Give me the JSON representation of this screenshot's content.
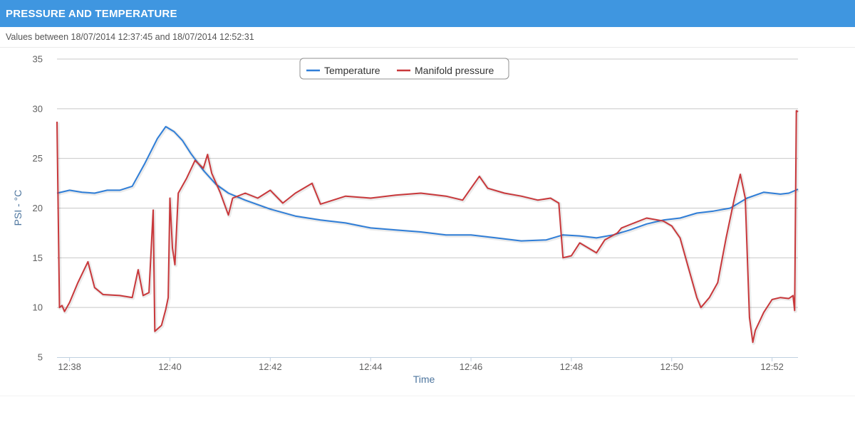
{
  "header": {
    "title": "PRESSURE AND TEMPERATURE"
  },
  "subtitle": "Values between 18/07/2014 12:37:45 and 18/07/2014 12:52:31",
  "chart_data": {
    "type": "line",
    "xlabel": "Time",
    "ylabel": "PSI - °C",
    "ylim": [
      5,
      35
    ],
    "yticks": [
      5,
      10,
      15,
      20,
      25,
      30,
      35
    ],
    "xlim": [
      "12:37:45",
      "12:52:31"
    ],
    "xticks": [
      "12:38",
      "12:40",
      "12:42",
      "12:44",
      "12:46",
      "12:48",
      "12:50",
      "12:52"
    ],
    "grid": true,
    "legend": "top-center",
    "series": [
      {
        "name": "Temperature",
        "color": "#2f7ed8",
        "points": [
          [
            "12:37:45",
            21.5
          ],
          [
            "12:38:00",
            21.8
          ],
          [
            "12:38:15",
            21.6
          ],
          [
            "12:38:30",
            21.5
          ],
          [
            "12:38:45",
            21.8
          ],
          [
            "12:39:00",
            21.8
          ],
          [
            "12:39:15",
            22.2
          ],
          [
            "12:39:30",
            24.5
          ],
          [
            "12:39:45",
            27.0
          ],
          [
            "12:39:55",
            28.2
          ],
          [
            "12:40:05",
            27.7
          ],
          [
            "12:40:15",
            26.8
          ],
          [
            "12:40:25",
            25.5
          ],
          [
            "12:40:40",
            23.8
          ],
          [
            "12:40:55",
            22.4
          ],
          [
            "12:41:10",
            21.5
          ],
          [
            "12:41:30",
            20.8
          ],
          [
            "12:42:00",
            19.9
          ],
          [
            "12:42:30",
            19.2
          ],
          [
            "12:43:00",
            18.8
          ],
          [
            "12:43:30",
            18.5
          ],
          [
            "12:44:00",
            18.0
          ],
          [
            "12:44:30",
            17.8
          ],
          [
            "12:45:00",
            17.6
          ],
          [
            "12:45:30",
            17.3
          ],
          [
            "12:46:00",
            17.3
          ],
          [
            "12:46:30",
            17.0
          ],
          [
            "12:47:00",
            16.7
          ],
          [
            "12:47:30",
            16.8
          ],
          [
            "12:47:50",
            17.3
          ],
          [
            "12:48:10",
            17.2
          ],
          [
            "12:48:30",
            17.0
          ],
          [
            "12:48:50",
            17.3
          ],
          [
            "12:49:10",
            17.8
          ],
          [
            "12:49:30",
            18.4
          ],
          [
            "12:49:50",
            18.8
          ],
          [
            "12:50:10",
            19.0
          ],
          [
            "12:50:30",
            19.5
          ],
          [
            "12:50:50",
            19.7
          ],
          [
            "12:51:10",
            20.0
          ],
          [
            "12:51:30",
            21.0
          ],
          [
            "12:51:50",
            21.6
          ],
          [
            "12:52:10",
            21.4
          ],
          [
            "12:52:20",
            21.5
          ],
          [
            "12:52:31",
            21.9
          ]
        ]
      },
      {
        "name": "Manifold pressure",
        "color": "#c9383b",
        "points": [
          [
            "12:37:45",
            28.7
          ],
          [
            "12:37:48",
            10.0
          ],
          [
            "12:37:51",
            10.2
          ],
          [
            "12:37:54",
            9.6
          ],
          [
            "12:38:00",
            10.5
          ],
          [
            "12:38:10",
            12.5
          ],
          [
            "12:38:22",
            14.6
          ],
          [
            "12:38:30",
            12.0
          ],
          [
            "12:38:40",
            11.3
          ],
          [
            "12:39:00",
            11.2
          ],
          [
            "12:39:15",
            11.0
          ],
          [
            "12:39:22",
            13.8
          ],
          [
            "12:39:28",
            11.2
          ],
          [
            "12:39:35",
            11.5
          ],
          [
            "12:39:40",
            19.8
          ],
          [
            "12:39:42",
            7.6
          ],
          [
            "12:39:50",
            8.2
          ],
          [
            "12:39:55",
            9.8
          ],
          [
            "12:39:58",
            11.0
          ],
          [
            "12:40:00",
            21.0
          ],
          [
            "12:40:03",
            16.0
          ],
          [
            "12:40:06",
            14.3
          ],
          [
            "12:40:10",
            21.5
          ],
          [
            "12:40:20",
            23.0
          ],
          [
            "12:40:30",
            24.8
          ],
          [
            "12:40:40",
            24.0
          ],
          [
            "12:40:45",
            25.4
          ],
          [
            "12:40:50",
            23.5
          ],
          [
            "12:41:00",
            21.6
          ],
          [
            "12:41:10",
            19.3
          ],
          [
            "12:41:15",
            21.0
          ],
          [
            "12:41:30",
            21.5
          ],
          [
            "12:41:45",
            21.0
          ],
          [
            "12:42:00",
            21.8
          ],
          [
            "12:42:15",
            20.5
          ],
          [
            "12:42:30",
            21.5
          ],
          [
            "12:42:50",
            22.5
          ],
          [
            "12:43:00",
            20.4
          ],
          [
            "12:43:30",
            21.2
          ],
          [
            "12:44:00",
            21.0
          ],
          [
            "12:44:30",
            21.3
          ],
          [
            "12:45:00",
            21.5
          ],
          [
            "12:45:30",
            21.2
          ],
          [
            "12:45:50",
            20.8
          ],
          [
            "12:46:00",
            22.0
          ],
          [
            "12:46:10",
            23.2
          ],
          [
            "12:46:20",
            22.0
          ],
          [
            "12:46:40",
            21.5
          ],
          [
            "12:47:00",
            21.2
          ],
          [
            "12:47:20",
            20.8
          ],
          [
            "12:47:35",
            21.0
          ],
          [
            "12:47:45",
            20.5
          ],
          [
            "12:47:50",
            15.0
          ],
          [
            "12:48:00",
            15.2
          ],
          [
            "12:48:10",
            16.5
          ],
          [
            "12:48:30",
            15.5
          ],
          [
            "12:48:40",
            16.8
          ],
          [
            "12:48:55",
            17.5
          ],
          [
            "12:49:00",
            18.0
          ],
          [
            "12:49:15",
            18.5
          ],
          [
            "12:49:30",
            19.0
          ],
          [
            "12:49:50",
            18.7
          ],
          [
            "12:50:00",
            18.2
          ],
          [
            "12:50:10",
            17.0
          ],
          [
            "12:50:20",
            14.0
          ],
          [
            "12:50:30",
            11.0
          ],
          [
            "12:50:35",
            10.0
          ],
          [
            "12:50:45",
            11.0
          ],
          [
            "12:50:55",
            12.5
          ],
          [
            "12:51:05",
            17.0
          ],
          [
            "12:51:15",
            21.0
          ],
          [
            "12:51:22",
            23.4
          ],
          [
            "12:51:28",
            21.0
          ],
          [
            "12:51:33",
            9.0
          ],
          [
            "12:51:37",
            6.5
          ],
          [
            "12:51:40",
            7.7
          ],
          [
            "12:51:50",
            9.5
          ],
          [
            "12:52:00",
            10.8
          ],
          [
            "12:52:10",
            11.0
          ],
          [
            "12:52:20",
            10.9
          ],
          [
            "12:52:25",
            11.2
          ],
          [
            "12:52:27",
            9.7
          ],
          [
            "12:52:29",
            29.8
          ],
          [
            "12:52:31",
            29.7
          ]
        ]
      }
    ]
  }
}
